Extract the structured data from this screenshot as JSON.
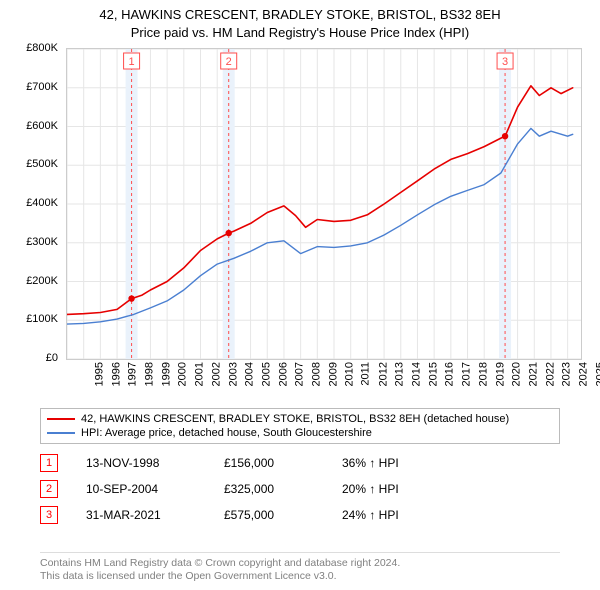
{
  "title_line1": "42, HAWKINS CRESCENT, BRADLEY STOKE, BRISTOL, BS32 8EH",
  "title_line2": "Price paid vs. HM Land Registry's House Price Index (HPI)",
  "chart": {
    "type": "line",
    "background_color": "#ffffff",
    "grid_color": "#e6e6e6",
    "border_color": "#cccccc",
    "xlim": [
      1995,
      2025.8
    ],
    "ylim": [
      0,
      800000
    ],
    "ytick_step": 100000,
    "yticks": [
      {
        "v": 0,
        "label": "£0"
      },
      {
        "v": 100000,
        "label": "£100K"
      },
      {
        "v": 200000,
        "label": "£200K"
      },
      {
        "v": 300000,
        "label": "£300K"
      },
      {
        "v": 400000,
        "label": "£400K"
      },
      {
        "v": 500000,
        "label": "£500K"
      },
      {
        "v": 600000,
        "label": "£600K"
      },
      {
        "v": 700000,
        "label": "£700K"
      },
      {
        "v": 800000,
        "label": "£800K"
      }
    ],
    "xticks": [
      1995,
      1996,
      1997,
      1998,
      1999,
      2000,
      2001,
      2002,
      2003,
      2004,
      2005,
      2006,
      2007,
      2008,
      2009,
      2010,
      2011,
      2012,
      2013,
      2014,
      2015,
      2016,
      2017,
      2018,
      2019,
      2020,
      2021,
      2022,
      2023,
      2024,
      2025
    ],
    "event_band_color": "#eaf2fb",
    "event_line_color": "#ff4d4d",
    "event_line_dash": "3,3",
    "events": [
      {
        "x": 1998.87,
        "label": "1"
      },
      {
        "x": 2004.69,
        "label": "2"
      },
      {
        "x": 2021.25,
        "label": "3"
      }
    ],
    "series": [
      {
        "name": "property",
        "color": "#e60000",
        "width": 1.6,
        "points": [
          [
            1995.0,
            115000
          ],
          [
            1996.0,
            117000
          ],
          [
            1997.0,
            120000
          ],
          [
            1998.0,
            128000
          ],
          [
            1998.87,
            156000
          ],
          [
            1999.5,
            165000
          ],
          [
            2000.0,
            178000
          ],
          [
            2001.0,
            200000
          ],
          [
            2002.0,
            235000
          ],
          [
            2003.0,
            280000
          ],
          [
            2004.0,
            310000
          ],
          [
            2004.69,
            325000
          ],
          [
            2005.0,
            330000
          ],
          [
            2006.0,
            350000
          ],
          [
            2007.0,
            378000
          ],
          [
            2008.0,
            395000
          ],
          [
            2008.7,
            370000
          ],
          [
            2009.3,
            340000
          ],
          [
            2010.0,
            360000
          ],
          [
            2011.0,
            355000
          ],
          [
            2012.0,
            358000
          ],
          [
            2013.0,
            372000
          ],
          [
            2014.0,
            400000
          ],
          [
            2015.0,
            430000
          ],
          [
            2016.0,
            460000
          ],
          [
            2017.0,
            490000
          ],
          [
            2018.0,
            515000
          ],
          [
            2019.0,
            530000
          ],
          [
            2020.0,
            548000
          ],
          [
            2021.0,
            570000
          ],
          [
            2021.25,
            575000
          ],
          [
            2022.0,
            650000
          ],
          [
            2022.8,
            705000
          ],
          [
            2023.3,
            680000
          ],
          [
            2024.0,
            700000
          ],
          [
            2024.6,
            685000
          ],
          [
            2025.3,
            700000
          ]
        ]
      },
      {
        "name": "hpi",
        "color": "#4a7fd1",
        "width": 1.4,
        "points": [
          [
            1995.0,
            90000
          ],
          [
            1996.0,
            92000
          ],
          [
            1997.0,
            96000
          ],
          [
            1998.0,
            103000
          ],
          [
            1999.0,
            115000
          ],
          [
            2000.0,
            132000
          ],
          [
            2001.0,
            150000
          ],
          [
            2002.0,
            178000
          ],
          [
            2003.0,
            215000
          ],
          [
            2004.0,
            245000
          ],
          [
            2005.0,
            260000
          ],
          [
            2006.0,
            278000
          ],
          [
            2007.0,
            300000
          ],
          [
            2008.0,
            305000
          ],
          [
            2009.0,
            272000
          ],
          [
            2010.0,
            290000
          ],
          [
            2011.0,
            288000
          ],
          [
            2012.0,
            292000
          ],
          [
            2013.0,
            300000
          ],
          [
            2014.0,
            320000
          ],
          [
            2015.0,
            345000
          ],
          [
            2016.0,
            372000
          ],
          [
            2017.0,
            398000
          ],
          [
            2018.0,
            420000
          ],
          [
            2019.0,
            435000
          ],
          [
            2020.0,
            450000
          ],
          [
            2021.0,
            480000
          ],
          [
            2022.0,
            555000
          ],
          [
            2022.8,
            595000
          ],
          [
            2023.3,
            575000
          ],
          [
            2024.0,
            588000
          ],
          [
            2025.0,
            575000
          ],
          [
            2025.3,
            580000
          ]
        ]
      }
    ],
    "sale_markers": [
      {
        "x": 1998.87,
        "y": 156000
      },
      {
        "x": 2004.69,
        "y": 325000
      },
      {
        "x": 2021.25,
        "y": 575000
      }
    ],
    "sale_marker_color": "#e60000",
    "sale_marker_radius": 3.2
  },
  "legend": {
    "items": [
      {
        "color": "#e60000",
        "label": "42, HAWKINS CRESCENT, BRADLEY STOKE, BRISTOL, BS32 8EH (detached house)"
      },
      {
        "color": "#4a7fd1",
        "label": "HPI: Average price, detached house, South Gloucestershire"
      }
    ]
  },
  "sales": [
    {
      "n": "1",
      "date": "13-NOV-1998",
      "price": "£156,000",
      "pct": "36% ↑ HPI"
    },
    {
      "n": "2",
      "date": "10-SEP-2004",
      "price": "£325,000",
      "pct": "20% ↑ HPI"
    },
    {
      "n": "3",
      "date": "31-MAR-2021",
      "price": "£575,000",
      "pct": "24% ↑ HPI"
    }
  ],
  "sales_marker_border": "#ff0000",
  "footer_line1": "Contains HM Land Registry data © Crown copyright and database right 2024.",
  "footer_line2": "This data is licensed under the Open Government Licence v3.0."
}
